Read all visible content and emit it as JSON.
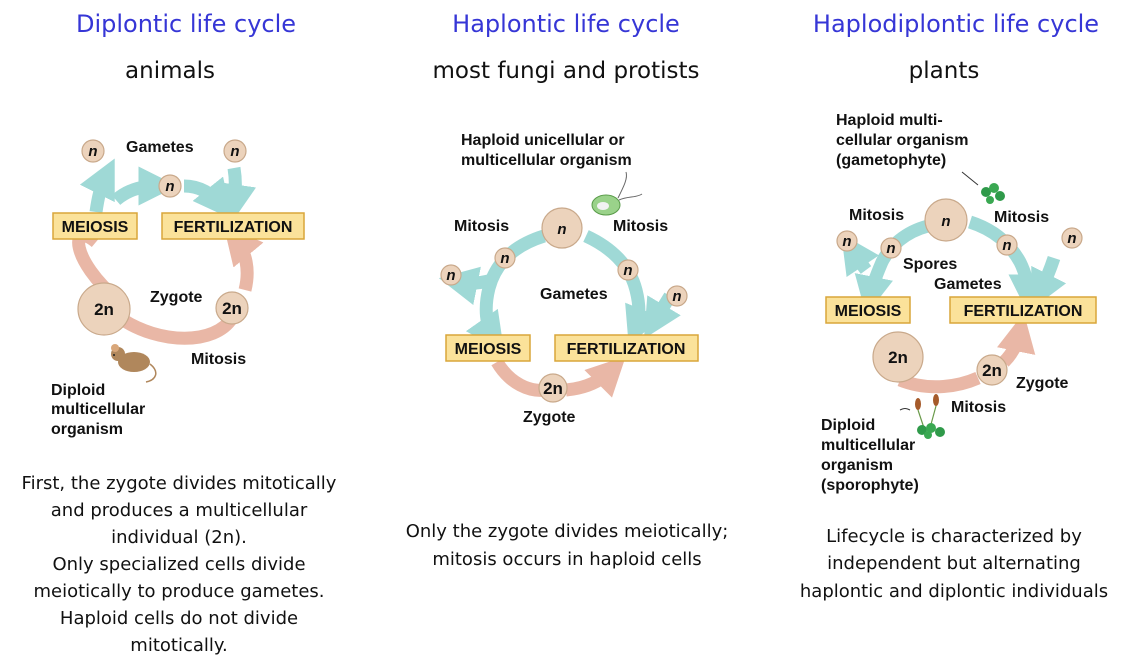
{
  "panels": [
    {
      "title": "Diplontic life cycle",
      "subtitle": "animals",
      "labels": {
        "gametes": "Gametes",
        "zygote": "Zygote",
        "mitosis": "Mitosis",
        "organism": [
          "Diploid",
          "multicellular",
          "organism"
        ]
      },
      "boxes": {
        "left": "MEIOSIS",
        "right": "FERTILIZATION"
      },
      "cells": {
        "haploid": "n",
        "diploid": "2n"
      },
      "description": [
        "First, the zygote divides mitotically",
        "and produces a multicellular",
        "individual (2n).",
        "Only specialized cells divide",
        "meiotically to produce gametes.",
        "Haploid cells do not divide",
        "mitotically."
      ]
    },
    {
      "title": "Haplontic life cycle",
      "subtitle": "most fungi and protists",
      "labels": {
        "organism": [
          "Haploid  unicellular  or",
          "multicellular  organism"
        ],
        "mitosis": "Mitosis",
        "gametes": "Gametes",
        "zygote": "Zygote"
      },
      "boxes": {
        "left": "MEIOSIS",
        "right": "FERTILIZATION"
      },
      "cells": {
        "haploid": "n",
        "diploid": "2n"
      },
      "description": [
        "Only the zygote divides meiotically;",
        "mitosis occurs in haploid cells"
      ]
    },
    {
      "title": "Haplodiplontic life cycle",
      "subtitle": "plants",
      "labels": {
        "gametophyte": [
          "Haploid multi-",
          "cellular organism",
          "(gametophyte)"
        ],
        "mitosis": "Mitosis",
        "spores": "Spores",
        "gametes": "Gametes",
        "zygote": "Zygote",
        "sporophyte": [
          "Diploid",
          "multicellular",
          "organism",
          "(sporophyte)"
        ]
      },
      "boxes": {
        "left": "MEIOSIS",
        "right": "FERTILIZATION"
      },
      "cells": {
        "haploid": "n",
        "diploid": "2n"
      },
      "description": [
        "Lifecycle is characterized by",
        "independent but alternating",
        "haplontic and diplontic individuals"
      ]
    }
  ],
  "colors": {
    "title": "#3636d6",
    "haploid_arrow": "#9fd9d6",
    "diploid_arrow": "#e9b7a6",
    "box_fill": "#fbe29a",
    "cell_fill": "#ecd3bc"
  }
}
